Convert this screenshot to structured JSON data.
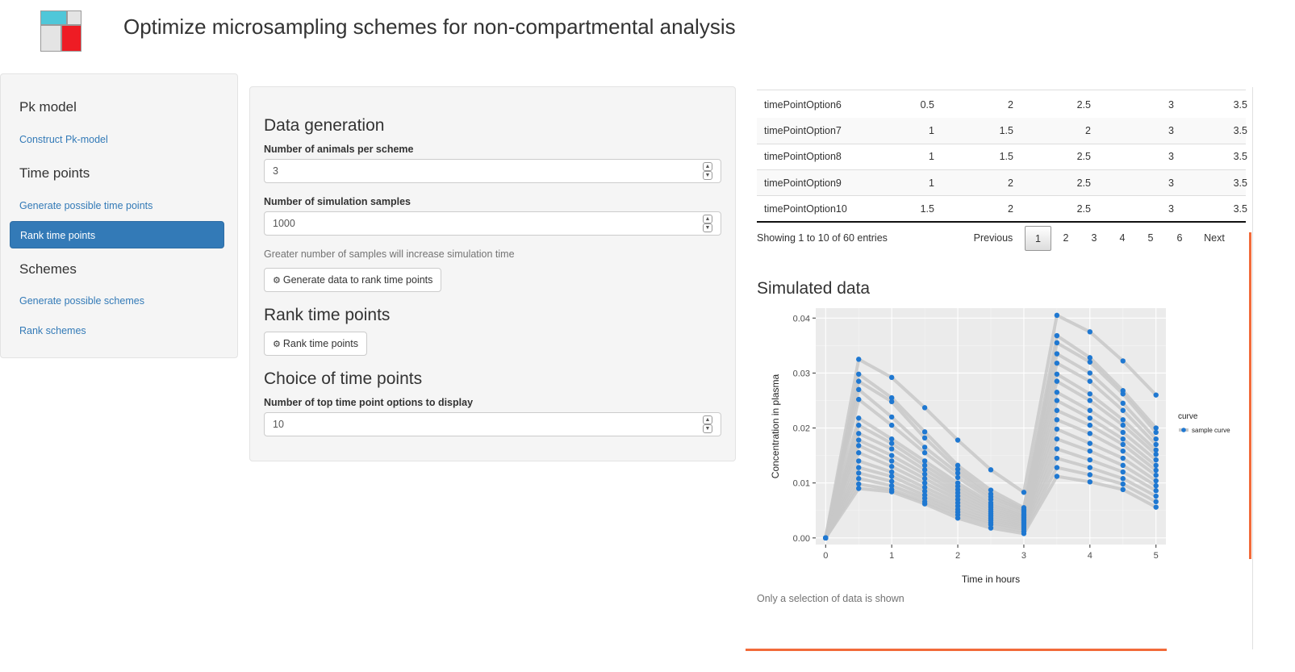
{
  "app": {
    "title": "Optimize microsampling schemes for non-compartmental analysis"
  },
  "sidebar": {
    "sections": [
      {
        "heading": "Pk model",
        "items": [
          {
            "label": "Construct Pk-model",
            "active": false
          }
        ]
      },
      {
        "heading": "Time points",
        "items": [
          {
            "label": "Generate possible time points",
            "active": false
          },
          {
            "label": "Rank time points",
            "active": true
          }
        ]
      },
      {
        "heading": "Schemes",
        "items": [
          {
            "label": "Generate possible schemes",
            "active": false
          },
          {
            "label": "Rank schemes",
            "active": false
          }
        ]
      }
    ]
  },
  "data_generation": {
    "heading": "Data generation",
    "animals_label": "Number of animals per scheme",
    "animals_value": "3",
    "samples_label": "Number of simulation samples",
    "samples_value": "1000",
    "help_text": "Greater number of samples will increase simulation time",
    "generate_button": "Generate data to rank time points"
  },
  "rank_time_points": {
    "heading": "Rank time points",
    "rank_button": "Rank time points"
  },
  "choice": {
    "heading": "Choice of time points",
    "top_label": "Number of top time point options to display",
    "top_value": "10"
  },
  "table": {
    "rows": [
      [
        "timePointOption6",
        "0.5",
        "2",
        "2.5",
        "3",
        "3.5"
      ],
      [
        "timePointOption7",
        "1",
        "1.5",
        "2",
        "3",
        "3.5"
      ],
      [
        "timePointOption8",
        "1",
        "1.5",
        "2.5",
        "3",
        "3.5"
      ],
      [
        "timePointOption9",
        "1",
        "2",
        "2.5",
        "3",
        "3.5"
      ],
      [
        "timePointOption10",
        "1.5",
        "2",
        "2.5",
        "3",
        "3.5"
      ]
    ],
    "info": "Showing 1 to 10 of 60 entries",
    "pagination": [
      "Previous",
      "1",
      "2",
      "3",
      "4",
      "5",
      "6",
      "Next"
    ],
    "current_page": "1"
  },
  "simulated": {
    "heading": "Simulated data",
    "note": "Only a selection of data is shown"
  },
  "colors": {
    "accent": "#337ab7",
    "points": "#1f78d1",
    "lines": "#c8c8c8",
    "plot_bg": "#ebebeb",
    "scroll": "#f26b3a"
  },
  "chart_data": {
    "type": "line",
    "xlabel": "Time in hours",
    "ylabel": "Concentration in plasma",
    "x_ticks": [
      "0",
      "1",
      "2",
      "3",
      "4",
      "5"
    ],
    "y_ticks": [
      "0.00",
      "0.01",
      "0.02",
      "0.03",
      "0.04"
    ],
    "xlim": [
      -0.15,
      5.15
    ],
    "ylim": [
      -0.0012,
      0.0418
    ],
    "legend": {
      "title": "curve",
      "entries": [
        "sample curve"
      ],
      "position": "right"
    },
    "x": [
      0,
      0.5,
      1,
      1.5,
      2,
      2.5,
      3,
      3.5,
      4,
      4.5,
      5
    ],
    "series": [
      {
        "values": [
          0,
          0.0325,
          0.0292,
          0.0237,
          0.0178,
          0.0124,
          0.0083,
          0.0405,
          0.0375,
          0.0322,
          0.026
        ]
      },
      {
        "values": [
          0,
          0.0298,
          0.0255,
          0.0193,
          0.0132,
          0.0087,
          0.0055,
          0.0368,
          0.0328,
          0.0268,
          0.02
        ]
      },
      {
        "values": [
          0,
          0.0285,
          0.0248,
          0.0182,
          0.0125,
          0.008,
          0.0052,
          0.0355,
          0.032,
          0.0262,
          0.0192
        ]
      },
      {
        "values": [
          0,
          0.027,
          0.022,
          0.0165,
          0.0118,
          0.0075,
          0.005,
          0.0335,
          0.03,
          0.0245,
          0.018
        ]
      },
      {
        "values": [
          0,
          0.0252,
          0.0205,
          0.0155,
          0.011,
          0.007,
          0.0047,
          0.0318,
          0.0285,
          0.0232,
          0.017
        ]
      },
      {
        "values": [
          0,
          0.0218,
          0.018,
          0.014,
          0.01,
          0.0064,
          0.0043,
          0.0298,
          0.0262,
          0.0215,
          0.016
        ]
      },
      {
        "values": [
          0,
          0.0205,
          0.0172,
          0.0132,
          0.0094,
          0.006,
          0.004,
          0.0285,
          0.025,
          0.0205,
          0.0152
        ]
      },
      {
        "values": [
          0,
          0.019,
          0.0162,
          0.0124,
          0.0088,
          0.0056,
          0.0037,
          0.0265,
          0.0232,
          0.0192,
          0.0142
        ]
      },
      {
        "values": [
          0,
          0.0178,
          0.015,
          0.0116,
          0.0082,
          0.0052,
          0.0034,
          0.025,
          0.0218,
          0.018,
          0.0132
        ]
      },
      {
        "values": [
          0,
          0.0168,
          0.014,
          0.0108,
          0.0076,
          0.0048,
          0.0031,
          0.0232,
          0.0205,
          0.017,
          0.0123
        ]
      },
      {
        "values": [
          0,
          0.0155,
          0.013,
          0.01,
          0.007,
          0.0044,
          0.0028,
          0.0215,
          0.019,
          0.0158,
          0.0114
        ]
      },
      {
        "values": [
          0,
          0.014,
          0.012,
          0.0092,
          0.0064,
          0.004,
          0.0025,
          0.0198,
          0.0172,
          0.0145,
          0.0104
        ]
      },
      {
        "values": [
          0,
          0.0128,
          0.0112,
          0.0085,
          0.0058,
          0.0036,
          0.0022,
          0.018,
          0.0158,
          0.0132,
          0.0095
        ]
      },
      {
        "values": [
          0,
          0.0118,
          0.0103,
          0.0078,
          0.0052,
          0.0032,
          0.0019,
          0.0162,
          0.0142,
          0.012,
          0.0086
        ]
      },
      {
        "values": [
          0,
          0.0108,
          0.0095,
          0.0072,
          0.0047,
          0.0028,
          0.0016,
          0.0145,
          0.0128,
          0.0108,
          0.0076
        ]
      },
      {
        "values": [
          0,
          0.0098,
          0.0088,
          0.0066,
          0.0042,
          0.0024,
          0.0012,
          0.0128,
          0.0115,
          0.0098,
          0.0066
        ]
      },
      {
        "values": [
          0,
          0.009,
          0.0084,
          0.0062,
          0.0036,
          0.0018,
          0.0008,
          0.0112,
          0.0102,
          0.0088,
          0.0056
        ]
      }
    ]
  }
}
